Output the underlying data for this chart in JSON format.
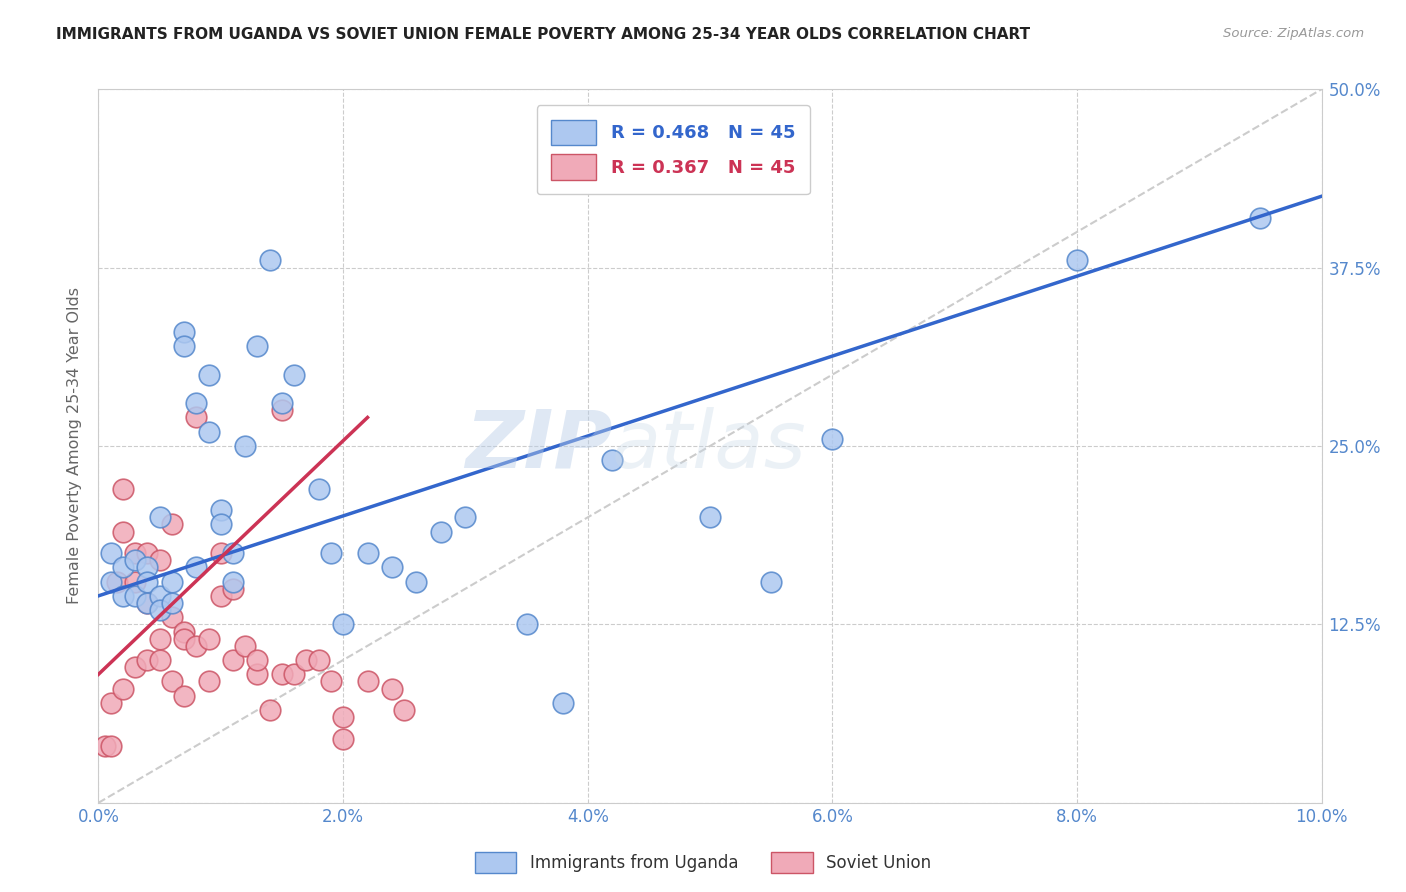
{
  "title": "IMMIGRANTS FROM UGANDA VS SOVIET UNION FEMALE POVERTY AMONG 25-34 YEAR OLDS CORRELATION CHART",
  "source": "Source: ZipAtlas.com",
  "ylabel": "Female Poverty Among 25-34 Year Olds",
  "xlim": [
    0,
    0.1
  ],
  "ylim": [
    0,
    0.5
  ],
  "xticks": [
    0.0,
    0.02,
    0.04,
    0.06,
    0.08,
    0.1
  ],
  "yticks": [
    0.0,
    0.125,
    0.25,
    0.375,
    0.5
  ],
  "xticklabels": [
    "0.0%",
    "2.0%",
    "4.0%",
    "6.0%",
    "8.0%",
    "10.0%"
  ],
  "yticklabels_right": [
    "",
    "12.5%",
    "25.0%",
    "37.5%",
    "50.0%"
  ],
  "uganda_color": "#adc8f0",
  "soviet_color": "#f0aab8",
  "uganda_edge": "#5588cc",
  "soviet_edge": "#cc5566",
  "trend_blue": "#3366cc",
  "trend_pink": "#cc3355",
  "legend_blue_label": "R = 0.468   N = 45",
  "legend_pink_label": "R = 0.367   N = 45",
  "bottom_legend_uganda": "Immigrants from Uganda",
  "bottom_legend_soviet": "Soviet Union",
  "watermark_zip": "ZIP",
  "watermark_atlas": "atlas",
  "uganda_x": [
    0.001,
    0.001,
    0.002,
    0.002,
    0.003,
    0.003,
    0.004,
    0.004,
    0.004,
    0.005,
    0.005,
    0.005,
    0.006,
    0.006,
    0.007,
    0.007,
    0.008,
    0.008,
    0.009,
    0.009,
    0.01,
    0.01,
    0.011,
    0.011,
    0.012,
    0.013,
    0.014,
    0.015,
    0.016,
    0.018,
    0.019,
    0.02,
    0.022,
    0.024,
    0.026,
    0.028,
    0.03,
    0.035,
    0.038,
    0.042,
    0.05,
    0.055,
    0.06,
    0.08,
    0.095
  ],
  "uganda_y": [
    0.155,
    0.175,
    0.145,
    0.165,
    0.17,
    0.145,
    0.165,
    0.155,
    0.14,
    0.2,
    0.145,
    0.135,
    0.155,
    0.14,
    0.33,
    0.32,
    0.28,
    0.165,
    0.3,
    0.26,
    0.205,
    0.195,
    0.175,
    0.155,
    0.25,
    0.32,
    0.38,
    0.28,
    0.3,
    0.22,
    0.175,
    0.125,
    0.175,
    0.165,
    0.155,
    0.19,
    0.2,
    0.125,
    0.07,
    0.24,
    0.2,
    0.155,
    0.255,
    0.38,
    0.41
  ],
  "soviet_x": [
    0.0005,
    0.001,
    0.001,
    0.0015,
    0.002,
    0.002,
    0.002,
    0.003,
    0.003,
    0.003,
    0.004,
    0.004,
    0.004,
    0.005,
    0.005,
    0.005,
    0.006,
    0.006,
    0.006,
    0.007,
    0.007,
    0.007,
    0.008,
    0.008,
    0.009,
    0.009,
    0.01,
    0.01,
    0.011,
    0.011,
    0.012,
    0.013,
    0.013,
    0.014,
    0.015,
    0.015,
    0.016,
    0.017,
    0.018,
    0.019,
    0.02,
    0.02,
    0.022,
    0.024,
    0.025
  ],
  "soviet_y": [
    0.04,
    0.07,
    0.04,
    0.155,
    0.22,
    0.19,
    0.08,
    0.155,
    0.175,
    0.095,
    0.14,
    0.175,
    0.1,
    0.17,
    0.115,
    0.1,
    0.195,
    0.13,
    0.085,
    0.12,
    0.115,
    0.075,
    0.27,
    0.11,
    0.085,
    0.115,
    0.145,
    0.175,
    0.15,
    0.1,
    0.11,
    0.09,
    0.1,
    0.065,
    0.275,
    0.09,
    0.09,
    0.1,
    0.1,
    0.085,
    0.06,
    0.045,
    0.085,
    0.08,
    0.065
  ],
  "blue_trend_x": [
    0.0,
    0.1
  ],
  "blue_trend_y": [
    0.145,
    0.425
  ],
  "pink_trend_x": [
    0.0,
    0.022
  ],
  "pink_trend_y": [
    0.09,
    0.27
  ],
  "ref_line_x": [
    0.0,
    0.1
  ],
  "ref_line_y": [
    0.0,
    0.5
  ]
}
